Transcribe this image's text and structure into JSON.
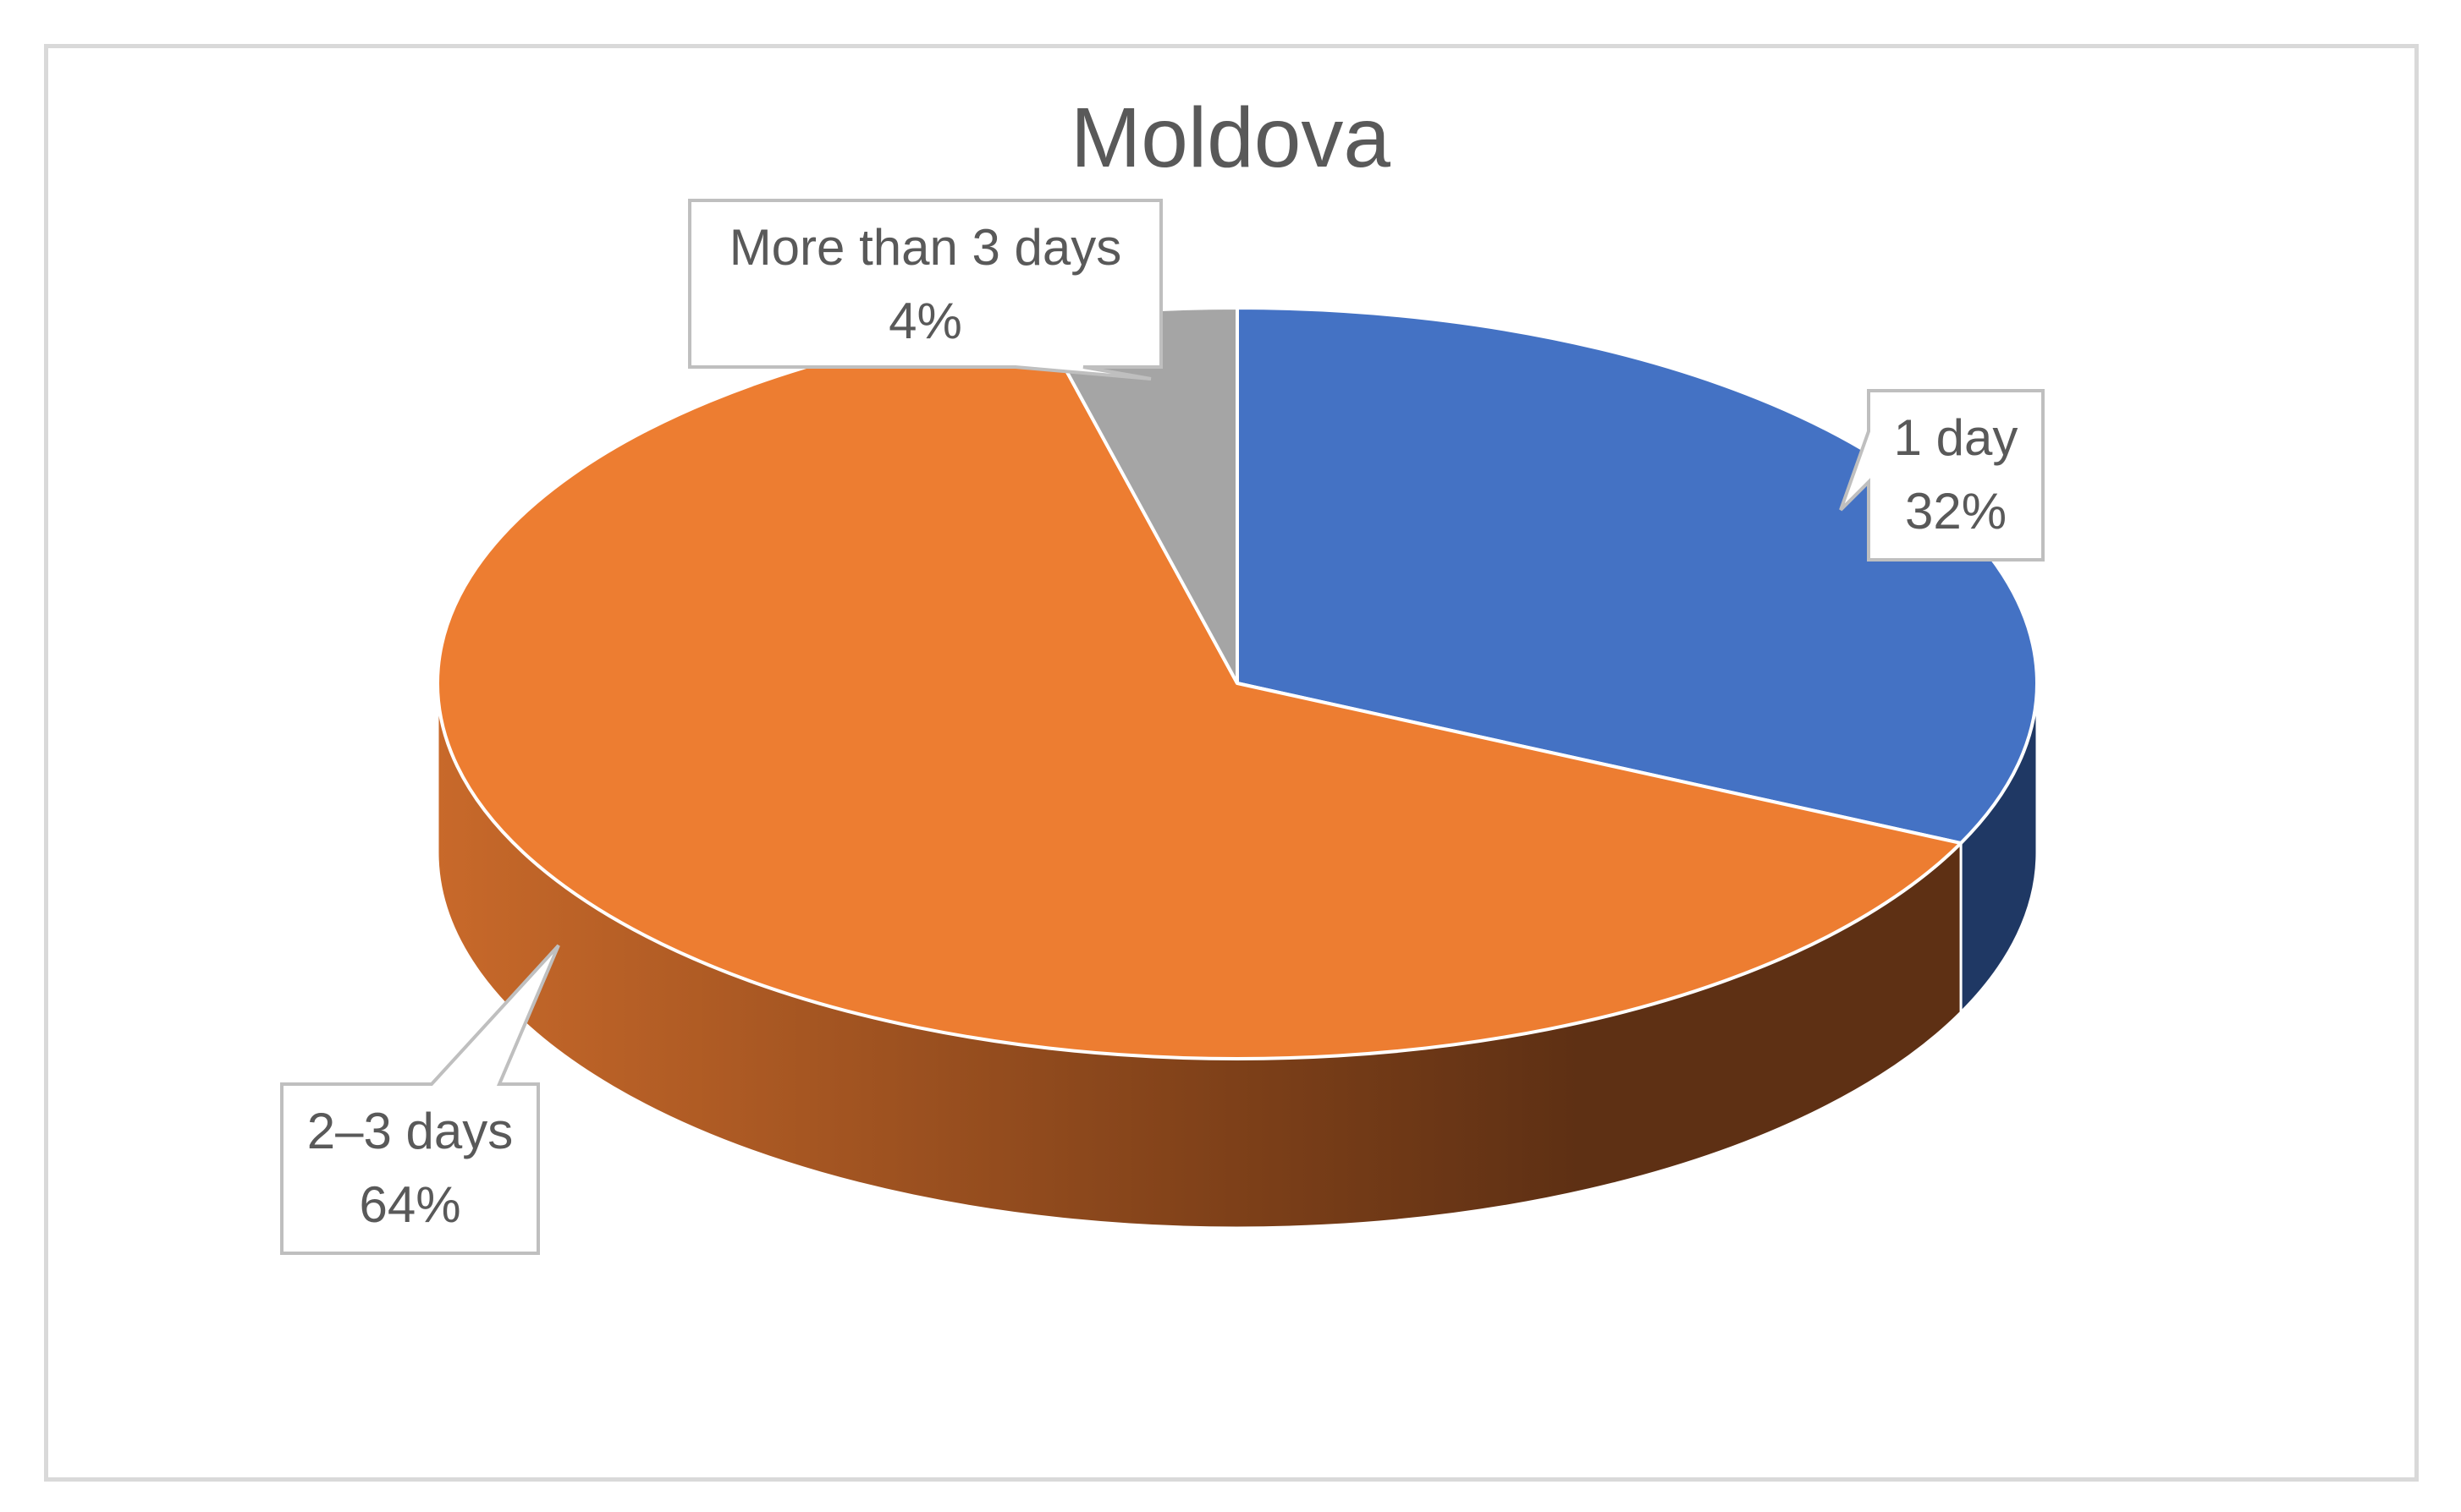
{
  "chart_data": {
    "type": "pie",
    "title": "Moldova",
    "style": "3d",
    "slices": [
      {
        "label": "1 day",
        "value": 32,
        "value_label": "32%",
        "color": "#4472C4",
        "side_color": "#1F3864"
      },
      {
        "label": "2–3 days",
        "value": 64,
        "value_label": "64%",
        "color": "#ED7D31",
        "side_color": "#C55A11"
      },
      {
        "label": "More than 3 days",
        "value": 4,
        "value_label": "4%",
        "color": "#A5A5A5",
        "side_color": "#7F7F7F"
      }
    ],
    "data_labels": "callouts"
  }
}
